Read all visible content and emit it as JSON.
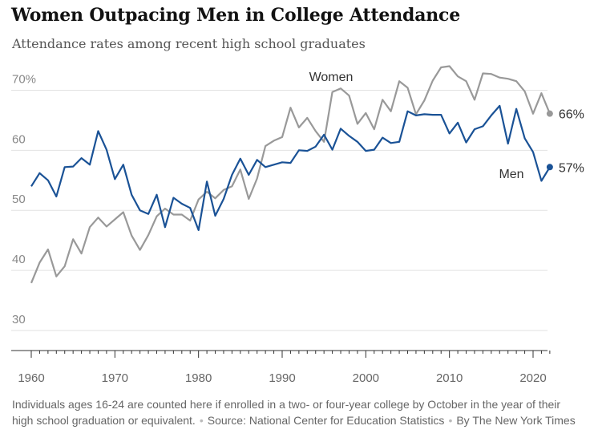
{
  "title": "Women Outpacing Men in College Attendance",
  "subtitle": "Attendance rates among recent high school graduates",
  "footnote": {
    "note": "Individuals ages 16-24 are counted here if enrolled in a two- or four-year college by October in the year of their high school graduation or equivalent.",
    "source": "Source: National Center for Education Statistics",
    "credit": "By The New York Times"
  },
  "colors": {
    "women": "#999999",
    "men": "#1a5296",
    "grid": "#e2e2e2",
    "axis": "#333333"
  },
  "chart_data": {
    "type": "line",
    "xlim": [
      1960,
      2022
    ],
    "ylim": [
      30,
      75
    ],
    "x_ticks": [
      1960,
      1970,
      1980,
      1990,
      2000,
      2010,
      2020
    ],
    "y_ticks": [
      30,
      40,
      50,
      60,
      70
    ],
    "y_tick_labels": [
      "30",
      "40",
      "50",
      "60",
      "70%"
    ],
    "grid": true,
    "series": [
      {
        "name": "Women",
        "end_label": "66%",
        "x": [
          1960,
          1961,
          1962,
          1963,
          1964,
          1965,
          1966,
          1967,
          1968,
          1969,
          1970,
          1971,
          1972,
          1973,
          1974,
          1975,
          1976,
          1977,
          1978,
          1979,
          1980,
          1981,
          1982,
          1983,
          1984,
          1985,
          1986,
          1987,
          1988,
          1989,
          1990,
          1991,
          1992,
          1993,
          1994,
          1995,
          1996,
          1997,
          1998,
          1999,
          2000,
          2001,
          2002,
          2003,
          2004,
          2005,
          2006,
          2007,
          2008,
          2009,
          2010,
          2011,
          2012,
          2013,
          2014,
          2015,
          2016,
          2017,
          2018,
          2019,
          2020,
          2021,
          2022
        ],
        "values": [
          37.9,
          41.3,
          43.5,
          39.0,
          40.7,
          45.2,
          42.8,
          47.2,
          48.8,
          47.3,
          48.5,
          49.7,
          45.8,
          43.4,
          45.9,
          49.0,
          50.3,
          49.3,
          49.3,
          48.3,
          51.8,
          53.1,
          52.0,
          53.4,
          54.0,
          56.8,
          51.9,
          55.3,
          60.7,
          61.6,
          62.2,
          67.1,
          63.8,
          65.4,
          63.2,
          61.4,
          69.7,
          70.3,
          69.1,
          64.4,
          66.2,
          63.5,
          68.4,
          66.5,
          71.5,
          70.4,
          66.0,
          68.3,
          71.6,
          73.8,
          74.0,
          72.3,
          71.5,
          68.4,
          72.8,
          72.7,
          72.1,
          71.9,
          71.5,
          69.8,
          66.1,
          69.5,
          66.1
        ]
      },
      {
        "name": "Men",
        "end_label": "57%",
        "x": [
          1960,
          1961,
          1962,
          1963,
          1964,
          1965,
          1966,
          1967,
          1968,
          1969,
          1970,
          1971,
          1972,
          1973,
          1974,
          1975,
          1976,
          1977,
          1978,
          1979,
          1980,
          1981,
          1982,
          1983,
          1984,
          1985,
          1986,
          1987,
          1988,
          1989,
          1990,
          1991,
          1992,
          1993,
          1994,
          1995,
          1996,
          1997,
          1998,
          1999,
          2000,
          2001,
          2002,
          2003,
          2004,
          2005,
          2006,
          2007,
          2008,
          2009,
          2010,
          2011,
          2012,
          2013,
          2014,
          2015,
          2016,
          2017,
          2018,
          2019,
          2020,
          2021,
          2022
        ],
        "values": [
          54.0,
          56.2,
          55.0,
          52.3,
          57.2,
          57.3,
          58.7,
          57.6,
          63.2,
          60.1,
          55.2,
          57.6,
          52.6,
          50.0,
          49.4,
          52.6,
          47.2,
          52.1,
          51.1,
          50.4,
          46.7,
          54.8,
          49.1,
          51.9,
          55.9,
          58.6,
          55.9,
          58.4,
          57.2,
          57.6,
          58.0,
          57.9,
          60.0,
          59.9,
          60.6,
          62.6,
          60.1,
          63.6,
          62.4,
          61.4,
          59.9,
          60.1,
          62.1,
          61.2,
          61.4,
          66.5,
          65.8,
          66.0,
          65.9,
          65.9,
          62.8,
          64.6,
          61.3,
          63.5,
          64.0,
          65.8,
          67.4,
          61.1,
          66.9,
          62.0,
          59.7,
          54.9,
          57.2
        ]
      }
    ]
  }
}
